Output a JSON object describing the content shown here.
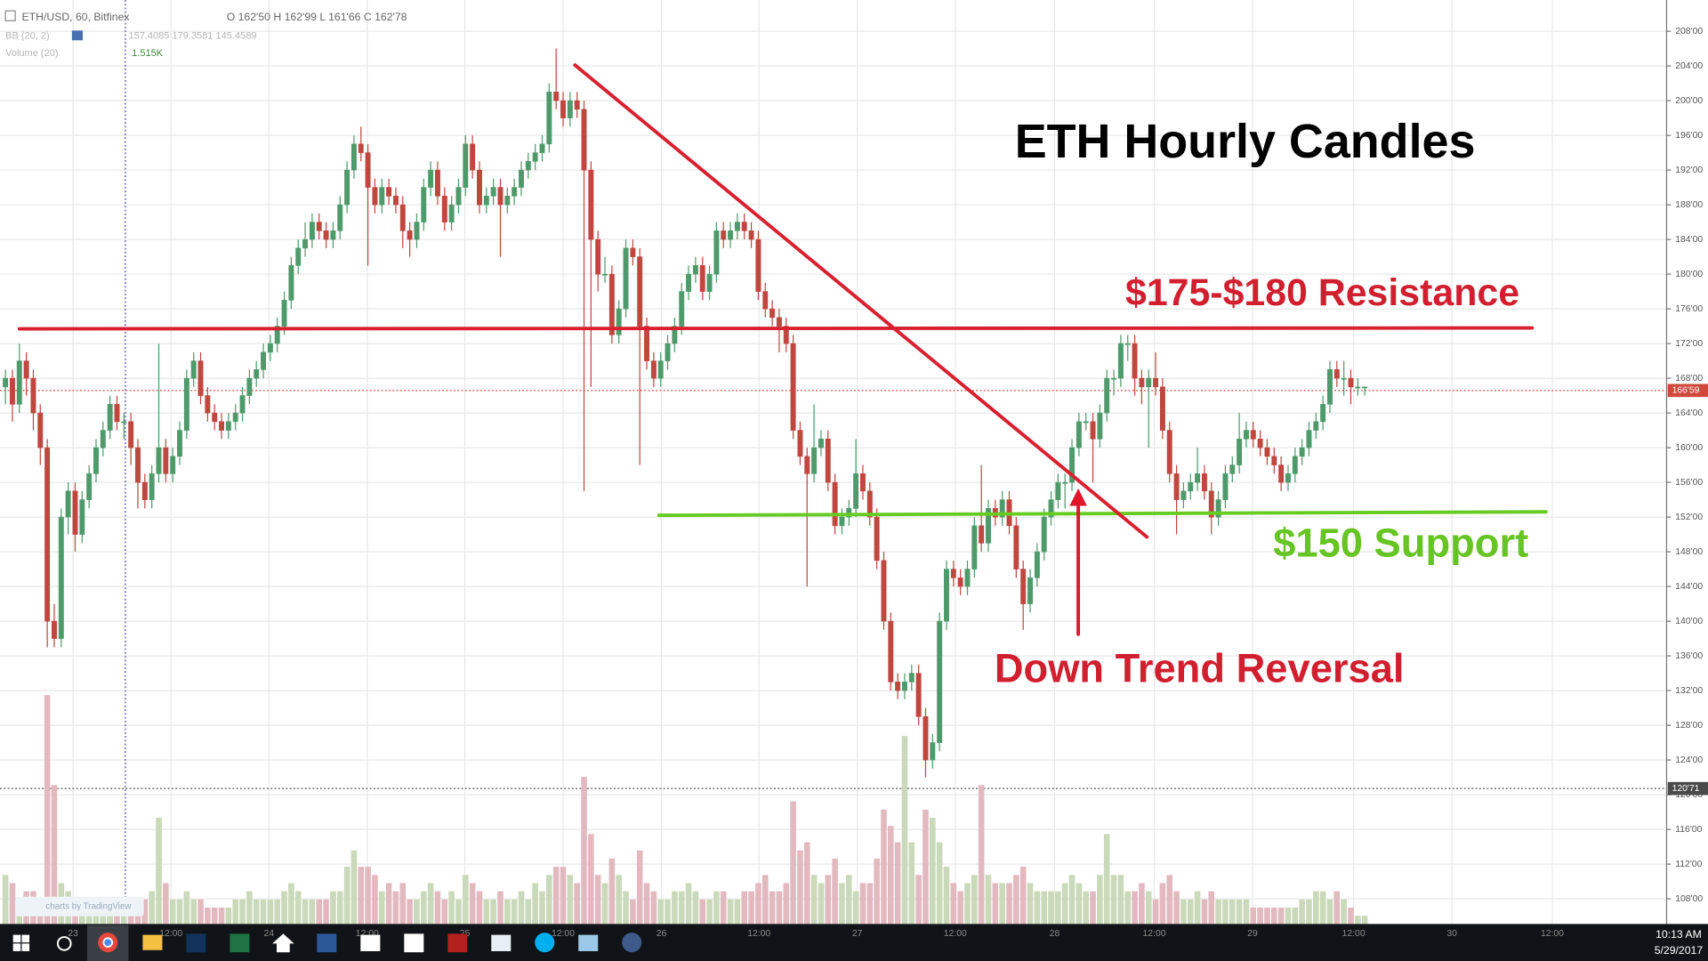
{
  "chart_data": {
    "type": "candlestick",
    "title": "ETH Hourly Candles",
    "symbol": "ETH/USD, 60, Bitfinex",
    "ohlc_legend": "O 162'50 H 162'99 L 161'66 C 162'78",
    "indicators": [
      {
        "name": "BB (20, 2)",
        "values_text": "157.4085 179.3581 145.4589"
      },
      {
        "name": "Volume (20)",
        "values_text": "1.515K"
      }
    ],
    "up_color": "#4f9a6b",
    "down_color": "#c0473f",
    "volume_up_color": "#c9d9b9",
    "volume_down_color": "#e3b9c0",
    "candles": [
      [
        167,
        169,
        165,
        168
      ],
      [
        168,
        169,
        163,
        165
      ],
      [
        165,
        172,
        164,
        170
      ],
      [
        170,
        171,
        166,
        168
      ],
      [
        168,
        169,
        162,
        164
      ],
      [
        164,
        165,
        158,
        160
      ],
      [
        160,
        161,
        137,
        140
      ],
      [
        140,
        142,
        137,
        138
      ],
      [
        138,
        153,
        137,
        152
      ],
      [
        152,
        156,
        150,
        155
      ],
      [
        155,
        156,
        148,
        150
      ],
      [
        150,
        155,
        149,
        154
      ],
      [
        154,
        158,
        153,
        157
      ],
      [
        157,
        161,
        156,
        160
      ],
      [
        160,
        163,
        159,
        162
      ],
      [
        162,
        166,
        161,
        165
      ],
      [
        165,
        166,
        162,
        163
      ],
      [
        163,
        164,
        161,
        163
      ],
      [
        163,
        164,
        158,
        160
      ],
      [
        160,
        161,
        153,
        156
      ],
      [
        156,
        157,
        153,
        154
      ],
      [
        154,
        158,
        153,
        157
      ],
      [
        157,
        172,
        156,
        160
      ],
      [
        160,
        161,
        156,
        157
      ],
      [
        157,
        160,
        156,
        159
      ],
      [
        159,
        163,
        158,
        162
      ],
      [
        162,
        169,
        161,
        168
      ],
      [
        168,
        171,
        167,
        170
      ],
      [
        170,
        171,
        165,
        166
      ],
      [
        166,
        167,
        163,
        164
      ],
      [
        164,
        165,
        162,
        163
      ],
      [
        163,
        164,
        161,
        162
      ],
      [
        162,
        164,
        161,
        163
      ],
      [
        163,
        165,
        162,
        164
      ],
      [
        164,
        167,
        163,
        166
      ],
      [
        166,
        169,
        165,
        168
      ],
      [
        168,
        170,
        167,
        169
      ],
      [
        169,
        172,
        168,
        171
      ],
      [
        171,
        173,
        170,
        172
      ],
      [
        172,
        175,
        171,
        174
      ],
      [
        174,
        178,
        173,
        177
      ],
      [
        177,
        182,
        176,
        181
      ],
      [
        181,
        184,
        180,
        183
      ],
      [
        183,
        186,
        182,
        184
      ],
      [
        184,
        187,
        183,
        186
      ],
      [
        186,
        187,
        184,
        185
      ],
      [
        185,
        186,
        183,
        184
      ],
      [
        184,
        186,
        183,
        185
      ],
      [
        185,
        189,
        184,
        188
      ],
      [
        188,
        193,
        187,
        192
      ],
      [
        192,
        196,
        191,
        195
      ],
      [
        195,
        197,
        193,
        194
      ],
      [
        194,
        195,
        181,
        190
      ],
      [
        190,
        191,
        187,
        188
      ],
      [
        188,
        191,
        187,
        190
      ],
      [
        190,
        191,
        188,
        189
      ],
      [
        189,
        190,
        187,
        188
      ],
      [
        188,
        189,
        183,
        185
      ],
      [
        185,
        186,
        182,
        184
      ],
      [
        184,
        187,
        183,
        186
      ],
      [
        186,
        191,
        185,
        190
      ],
      [
        190,
        193,
        189,
        192
      ],
      [
        192,
        193,
        188,
        189
      ],
      [
        189,
        190,
        185,
        186
      ],
      [
        186,
        189,
        185,
        188
      ],
      [
        188,
        191,
        187,
        190
      ],
      [
        190,
        196,
        189,
        195
      ],
      [
        195,
        196,
        191,
        192
      ],
      [
        192,
        193,
        187,
        188
      ],
      [
        188,
        190,
        187,
        189
      ],
      [
        189,
        191,
        188,
        190
      ],
      [
        190,
        191,
        182,
        188
      ],
      [
        188,
        190,
        187,
        189
      ],
      [
        189,
        191,
        188,
        190
      ],
      [
        190,
        193,
        189,
        192
      ],
      [
        192,
        194,
        191,
        193
      ],
      [
        193,
        195,
        192,
        194
      ],
      [
        194,
        196,
        193,
        195
      ],
      [
        195,
        202,
        194,
        201
      ],
      [
        201,
        206,
        199,
        200
      ],
      [
        200,
        201,
        197,
        198
      ],
      [
        198,
        201,
        197,
        200
      ],
      [
        200,
        201,
        198,
        199
      ],
      [
        199,
        200,
        155,
        192
      ],
      [
        192,
        193,
        167,
        184
      ],
      [
        184,
        185,
        178,
        180
      ],
      [
        180,
        182,
        179,
        180
      ],
      [
        180,
        181,
        172,
        173
      ],
      [
        173,
        177,
        172,
        176
      ],
      [
        176,
        184,
        175,
        183
      ],
      [
        183,
        184,
        181,
        182
      ],
      [
        182,
        183,
        158,
        174
      ],
      [
        174,
        175,
        169,
        170
      ],
      [
        170,
        171,
        167,
        168
      ],
      [
        168,
        171,
        167,
        170
      ],
      [
        170,
        173,
        169,
        172
      ],
      [
        172,
        175,
        171,
        174
      ],
      [
        174,
        179,
        173,
        178
      ],
      [
        178,
        181,
        177,
        180
      ],
      [
        180,
        182,
        179,
        181
      ],
      [
        181,
        182,
        177,
        178
      ],
      [
        178,
        181,
        177,
        180
      ],
      [
        180,
        186,
        179,
        185
      ],
      [
        185,
        186,
        183,
        184
      ],
      [
        184,
        186,
        183,
        185
      ],
      [
        185,
        187,
        184,
        186
      ],
      [
        186,
        187,
        184,
        185
      ],
      [
        185,
        186,
        183,
        184
      ],
      [
        184,
        185,
        177,
        178
      ],
      [
        178,
        179,
        175,
        176
      ],
      [
        176,
        177,
        174,
        175
      ],
      [
        175,
        176,
        171,
        174
      ],
      [
        174,
        175,
        171,
        172
      ],
      [
        172,
        173,
        161,
        162
      ],
      [
        162,
        163,
        158,
        159
      ],
      [
        159,
        160,
        144,
        157
      ],
      [
        157,
        165,
        156,
        160
      ],
      [
        160,
        162,
        159,
        161
      ],
      [
        161,
        162,
        155,
        156
      ],
      [
        156,
        157,
        150,
        151
      ],
      [
        151,
        153,
        150,
        152
      ],
      [
        152,
        154,
        151,
        153
      ],
      [
        153,
        161,
        152,
        157
      ],
      [
        157,
        158,
        154,
        155
      ],
      [
        155,
        156,
        151,
        152
      ],
      [
        152,
        153,
        146,
        147
      ],
      [
        147,
        148,
        139,
        140
      ],
      [
        140,
        141,
        132,
        133
      ],
      [
        133,
        134,
        131,
        132
      ],
      [
        132,
        134,
        131,
        133
      ],
      [
        133,
        135,
        132,
        134
      ],
      [
        134,
        135,
        128,
        129
      ],
      [
        129,
        130,
        122,
        124
      ],
      [
        124,
        127,
        123,
        126
      ],
      [
        126,
        141,
        125,
        140
      ],
      [
        140,
        147,
        139,
        146
      ],
      [
        146,
        147,
        144,
        145
      ],
      [
        145,
        146,
        143,
        144
      ],
      [
        144,
        147,
        143,
        146
      ],
      [
        146,
        152,
        145,
        151
      ],
      [
        151,
        158,
        148,
        149
      ],
      [
        149,
        154,
        148,
        153
      ],
      [
        153,
        154,
        151,
        152
      ],
      [
        152,
        155,
        151,
        154
      ],
      [
        154,
        155,
        150,
        151
      ],
      [
        151,
        152,
        145,
        146
      ],
      [
        146,
        147,
        139,
        142
      ],
      [
        142,
        146,
        141,
        145
      ],
      [
        145,
        149,
        144,
        148
      ],
      [
        148,
        153,
        147,
        152
      ],
      [
        152,
        155,
        151,
        154
      ],
      [
        154,
        157,
        153,
        156
      ],
      [
        156,
        157,
        153,
        156
      ],
      [
        156,
        161,
        155,
        160
      ],
      [
        160,
        164,
        159,
        163
      ],
      [
        163,
        164,
        162,
        163
      ],
      [
        163,
        164,
        156,
        161
      ],
      [
        161,
        165,
        160,
        164
      ],
      [
        164,
        169,
        163,
        168
      ],
      [
        168,
        169,
        166,
        168
      ],
      [
        168,
        173,
        167,
        172
      ],
      [
        172,
        173,
        170,
        172
      ],
      [
        172,
        173,
        166,
        168
      ],
      [
        168,
        169,
        165,
        167
      ],
      [
        167,
        169,
        160,
        168
      ],
      [
        168,
        171,
        166,
        167
      ],
      [
        167,
        168,
        161,
        162
      ],
      [
        162,
        163,
        156,
        157
      ],
      [
        157,
        158,
        150,
        154
      ],
      [
        154,
        156,
        153,
        155
      ],
      [
        155,
        157,
        154,
        156
      ],
      [
        156,
        160,
        155,
        157
      ],
      [
        157,
        158,
        154,
        155
      ],
      [
        155,
        156,
        150,
        152
      ],
      [
        152,
        155,
        151,
        154
      ],
      [
        154,
        158,
        153,
        157
      ],
      [
        157,
        159,
        156,
        158
      ],
      [
        158,
        164,
        157,
        161
      ],
      [
        161,
        163,
        160,
        162
      ],
      [
        162,
        163,
        160,
        161
      ],
      [
        161,
        162,
        159,
        160
      ],
      [
        160,
        161,
        158,
        159
      ],
      [
        159,
        160,
        157,
        158
      ],
      [
        158,
        159,
        155,
        156
      ],
      [
        156,
        158,
        155,
        157
      ],
      [
        157,
        160,
        156,
        159
      ],
      [
        159,
        161,
        158,
        160
      ],
      [
        160,
        163,
        159,
        162
      ],
      [
        162,
        164,
        161,
        163
      ],
      [
        163,
        166,
        162,
        165
      ],
      [
        165,
        170,
        164,
        169
      ],
      [
        169,
        170,
        167,
        168
      ],
      [
        168,
        170,
        166,
        168
      ],
      [
        168,
        169,
        165,
        167
      ],
      [
        167,
        168,
        166,
        167
      ],
      [
        167,
        167,
        166,
        167
      ]
    ],
    "volumes": [
      6,
      5,
      3,
      4,
      4,
      3,
      28,
      17,
      5,
      4,
      3,
      3,
      2,
      3,
      2,
      3,
      2,
      2,
      3,
      3,
      3,
      4,
      13,
      5,
      3,
      3,
      4,
      3,
      3,
      2,
      2,
      2,
      2,
      3,
      3,
      4,
      3,
      3,
      3,
      3,
      4,
      5,
      4,
      3,
      3,
      3,
      3,
      4,
      4,
      7,
      9,
      7,
      7,
      6,
      4,
      5,
      4,
      5,
      3,
      3,
      4,
      5,
      4,
      3,
      4,
      3,
      6,
      5,
      4,
      3,
      3,
      4,
      3,
      3,
      4,
      3,
      5,
      4,
      6,
      7,
      7,
      6,
      5,
      18,
      11,
      6,
      5,
      8,
      6,
      4,
      3,
      9,
      5,
      4,
      3,
      3,
      4,
      4,
      5,
      4,
      3,
      3,
      4,
      4,
      3,
      3,
      4,
      4,
      5,
      6,
      4,
      4,
      5,
      15,
      9,
      10,
      6,
      5,
      6,
      8,
      5,
      6,
      4,
      5,
      5,
      8,
      14,
      12,
      10,
      23,
      10,
      6,
      14,
      13,
      10,
      7,
      5,
      4,
      5,
      6,
      17,
      6,
      5,
      5,
      5,
      6,
      7,
      5,
      4,
      4,
      4,
      4,
      5,
      6,
      5,
      4,
      4,
      6,
      11,
      6,
      6,
      4,
      4,
      5,
      4,
      3,
      5,
      6,
      4,
      3,
      3,
      4,
      3,
      4,
      3,
      3,
      3,
      3,
      3,
      2,
      2,
      2,
      2,
      2,
      2,
      2,
      3,
      3,
      4,
      4,
      3,
      4,
      3,
      2,
      1,
      1
    ],
    "volume_lim": [
      0,
      40
    ],
    "xlim": [
      -0.78,
      238.3
    ],
    "xticks": [
      {
        "value": 9.7,
        "label": "23"
      },
      {
        "value": 23.75,
        "label": "12:00"
      },
      {
        "value": 37.8,
        "label": "24"
      },
      {
        "value": 51.9,
        "label": "12:00"
      },
      {
        "value": 65.9,
        "label": "25"
      },
      {
        "value": 80,
        "label": "12:00"
      },
      {
        "value": 94.1,
        "label": "26"
      },
      {
        "value": 108.1,
        "label": "12:00"
      },
      {
        "value": 122.2,
        "label": "27"
      },
      {
        "value": 136.25,
        "label": "12:00"
      },
      {
        "value": 150.5,
        "label": "28"
      },
      {
        "value": 164.8,
        "label": "12:00"
      },
      {
        "value": 178.9,
        "label": "29"
      },
      {
        "value": 193.4,
        "label": "12:00"
      },
      {
        "value": 207.5,
        "label": "30"
      },
      {
        "value": 221.9,
        "label": "12:00"
      }
    ],
    "ylim": [
      105.1,
      211.6
    ],
    "yticks": [
      {
        "value": 108,
        "label": "108'00"
      },
      {
        "value": 112,
        "label": "112'00"
      },
      {
        "value": 116,
        "label": "116'00"
      },
      {
        "value": 120,
        "label": "120'00"
      },
      {
        "value": 124,
        "label": "124'00"
      },
      {
        "value": 128,
        "label": "128'00"
      },
      {
        "value": 132,
        "label": "132'00"
      },
      {
        "value": 136,
        "label": "136'00"
      },
      {
        "value": 140,
        "label": "140'00"
      },
      {
        "value": 144,
        "label": "144'00"
      },
      {
        "value": 148,
        "label": "148'00"
      },
      {
        "value": 152,
        "label": "152'00"
      },
      {
        "value": 156,
        "label": "156'00"
      },
      {
        "value": 160,
        "label": "160'00"
      },
      {
        "value": 164,
        "label": "164'00"
      },
      {
        "value": 168,
        "label": "168'00"
      },
      {
        "value": 172,
        "label": "172'00"
      },
      {
        "value": 176,
        "label": "176'00"
      },
      {
        "value": 180,
        "label": "180'00"
      },
      {
        "value": 184,
        "label": "184'00"
      },
      {
        "value": 188,
        "label": "188'00"
      },
      {
        "value": 192,
        "label": "192'00"
      },
      {
        "value": 196,
        "label": "196'00"
      },
      {
        "value": 200,
        "label": "200'00"
      },
      {
        "value": 204,
        "label": "204'00"
      },
      {
        "value": 208,
        "label": "208'00"
      }
    ],
    "grid": true,
    "price_tags": [
      {
        "value": 166.59,
        "label": "166'59",
        "color": "#d2473c"
      },
      {
        "value": 120.71,
        "label": "120'71",
        "color": "#4a4a4a"
      }
    ],
    "crosshair_x": 17.2,
    "lines": [
      {
        "x": [
          2,
          219
        ],
        "y": [
          173.7,
          173.8
        ],
        "color": "#d9202f"
      },
      {
        "x": [
          93.75,
          221
        ],
        "y": [
          152.2,
          152.6
        ],
        "color": "#66cc22"
      },
      {
        "x": [
          81.7,
          163.75
        ],
        "y": [
          204.1,
          149.7
        ],
        "color": "#d9202f"
      },
      {
        "x": [
          153.9,
          153.9
        ],
        "y": [
          138.5,
          154.5
        ],
        "color": "#e0162b",
        "arrow": true
      }
    ],
    "annotations": [
      {
        "text": "ETH Hourly Candles",
        "color": "#000000"
      },
      {
        "text": "$175-$180 Resistance",
        "color": "#d21f2f"
      },
      {
        "text": "$150 Support",
        "color": "#66c423"
      },
      {
        "text": "Down Trend Reversal",
        "color": "#d21f2f"
      }
    ],
    "watermark": "charts by TradingView"
  },
  "taskbar": {
    "time": "10:13 AM",
    "date": "5/29/2017"
  }
}
